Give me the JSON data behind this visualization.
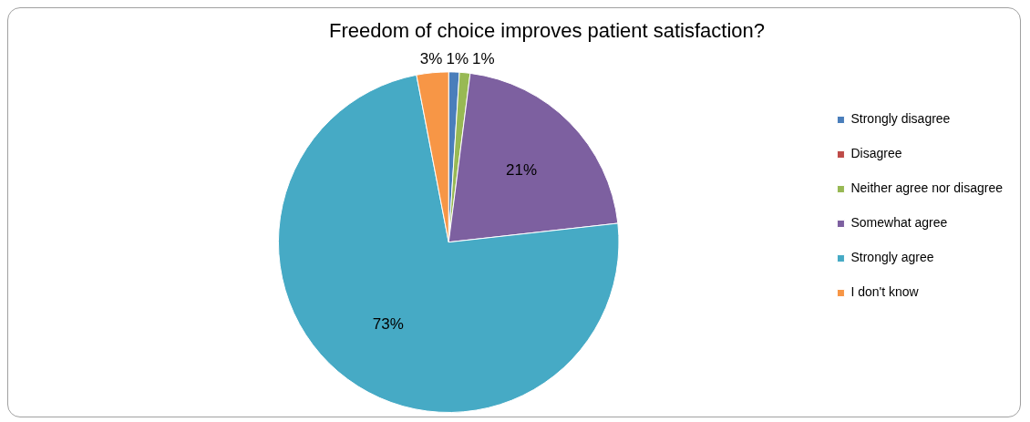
{
  "chart_data": {
    "type": "pie",
    "title": "Freedom of choice improves patient satisfaction?",
    "categories": [
      "Strongly disagree",
      "Disagree",
      "Neither agree nor disagree",
      "Somewhat agree",
      "Strongly agree",
      "I don't know"
    ],
    "values": [
      1,
      0,
      1,
      21,
      73,
      3
    ],
    "value_labels": [
      "1%",
      null,
      "1%",
      "21%",
      "73%",
      "3%"
    ],
    "colors": [
      "#4a7ebb",
      "#be4b48",
      "#98b954",
      "#7d60a0",
      "#46aac5",
      "#f79646"
    ],
    "legend": "right"
  }
}
